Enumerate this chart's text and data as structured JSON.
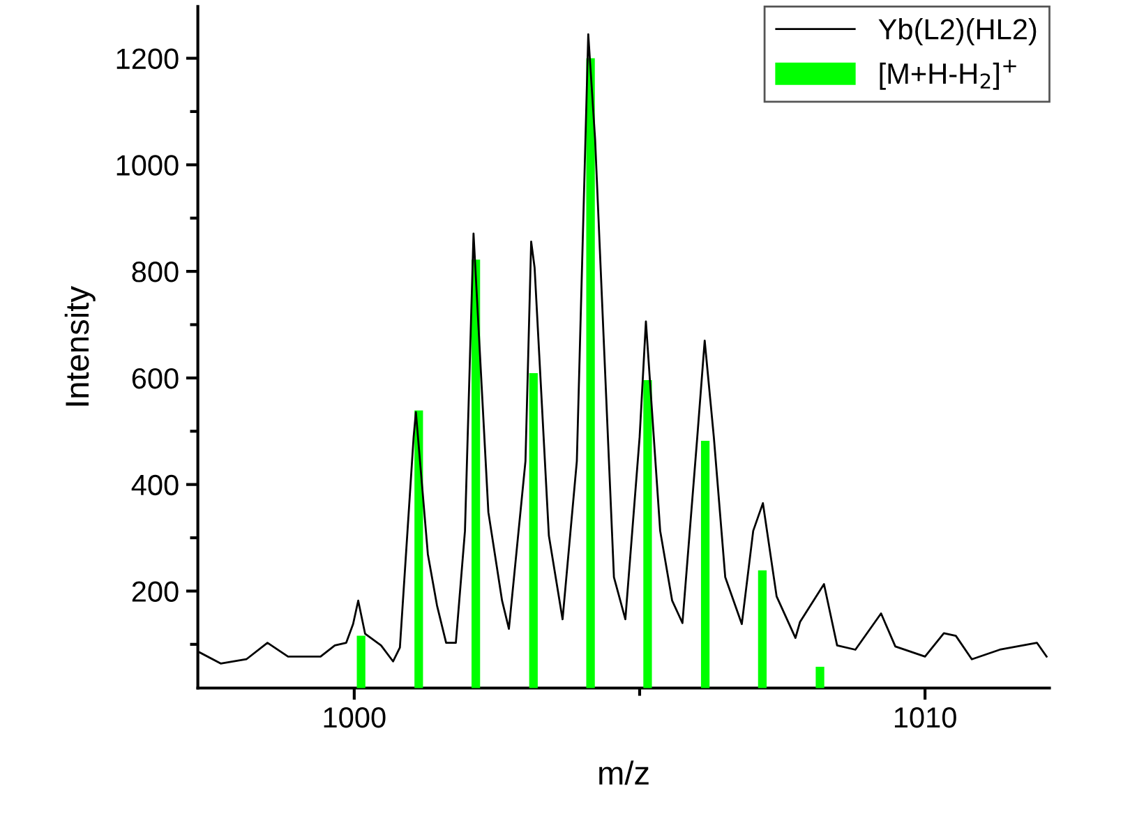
{
  "chart_data": {
    "type": "line",
    "xlabel": "m/z",
    "ylabel": "Intensity",
    "xlim": [
      997.26,
      1012.18
    ],
    "ylim": [
      18,
      1297
    ],
    "xticks": [
      1000,
      {
        "value": 1005,
        "label": null
      },
      1010
    ],
    "yticks": [
      {
        "value": 100,
        "label": null
      },
      200,
      {
        "value": 300,
        "label": null
      },
      400,
      {
        "value": 500,
        "label": null
      },
      600,
      {
        "value": 700,
        "label": null
      },
      800,
      {
        "value": 900,
        "label": null
      },
      1000,
      {
        "value": 1100,
        "label": null
      },
      1200
    ],
    "grid": false,
    "legend": "top right",
    "series": [
      {
        "name": "Yb(L2)(HL2)",
        "color": "#000000",
        "x": [
          997.29,
          997.66,
          998.11,
          998.48,
          998.84,
          999.41,
          999.66,
          999.86,
          999.98,
          1000.07,
          1000.19,
          1000.47,
          1000.68,
          1000.8,
          1001.04,
          1001.08,
          1001.29,
          1001.45,
          1001.61,
          1001.78,
          1001.94,
          1002.09,
          1002.35,
          1002.59,
          1002.71,
          1003.0,
          1003.1,
          1003.16,
          1003.41,
          1003.65,
          1003.9,
          1004.1,
          1004.22,
          1004.55,
          1004.75,
          1005.0,
          1005.11,
          1005.36,
          1005.57,
          1005.75,
          1006.01,
          1006.14,
          1006.3,
          1006.5,
          1006.79,
          1006.99,
          1007.16,
          1007.4,
          1007.73,
          1007.81,
          1008.23,
          1008.46,
          1008.78,
          1009.23,
          1009.48,
          1010.0,
          1010.33,
          1010.54,
          1010.82,
          1011.31,
          1011.96,
          1012.13
        ],
        "values": [
          85,
          64,
          72,
          103,
          77,
          77,
          98,
          103,
          138,
          182,
          120,
          98,
          68,
          94,
          488,
          536,
          269,
          173,
          103,
          103,
          313,
          871,
          348,
          182,
          129,
          444,
          856,
          807,
          304,
          147,
          444,
          1245,
          1048,
          226,
          147,
          489,
          706,
          313,
          182,
          140,
          489,
          670,
          489,
          226,
          138,
          313,
          365,
          190,
          112,
          142,
          213,
          98,
          90,
          158,
          96,
          77,
          121,
          116,
          72,
          90,
          103,
          77
        ]
      },
      {
        "name": "[M+H-H$_{2}$]$^{+}$",
        "type": "bar",
        "color": "#00ff00",
        "x": [
          1000.12,
          1001.13,
          1002.13,
          1003.14,
          1004.14,
          1005.14,
          1006.15,
          1007.15,
          1008.16
        ],
        "values": [
          116,
          539,
          822,
          609,
          1200,
          596,
          482,
          239,
          58
        ]
      }
    ]
  }
}
